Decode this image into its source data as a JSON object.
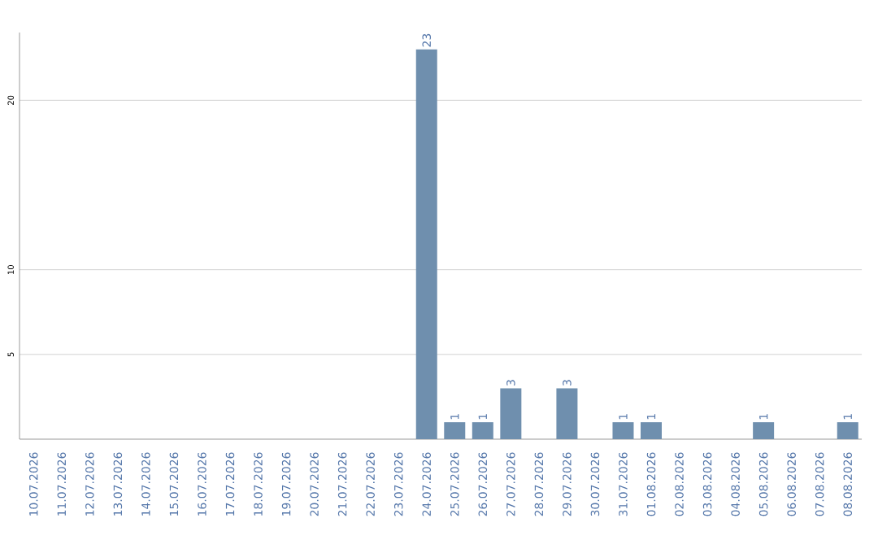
{
  "chart_data": {
    "type": "bar",
    "categories": [
      "10.07.2026",
      "11.07.2026",
      "12.07.2026",
      "13.07.2026",
      "14.07.2026",
      "15.07.2026",
      "16.07.2026",
      "17.07.2026",
      "18.07.2026",
      "19.07.2026",
      "20.07.2026",
      "21.07.2026",
      "22.07.2026",
      "23.07.2026",
      "24.07.2026",
      "25.07.2026",
      "26.07.2026",
      "27.07.2026",
      "28.07.2026",
      "29.07.2026",
      "30.07.2026",
      "31.07.2026",
      "01.08.2026",
      "02.08.2026",
      "03.08.2026",
      "04.08.2026",
      "05.08.2026",
      "06.08.2026",
      "07.08.2026",
      "08.08.2026"
    ],
    "values": [
      0,
      0,
      0,
      0,
      0,
      0,
      0,
      0,
      0,
      0,
      0,
      0,
      0,
      0,
      23,
      1,
      1,
      3,
      0,
      3,
      0,
      1,
      1,
      0,
      0,
      0,
      1,
      0,
      0,
      1
    ],
    "value_labels": [
      null,
      null,
      null,
      null,
      null,
      null,
      null,
      null,
      null,
      null,
      null,
      null,
      null,
      null,
      "23",
      "1",
      "1",
      "3",
      null,
      "3",
      null,
      "1",
      "1",
      null,
      null,
      null,
      "1",
      null,
      null,
      "1"
    ],
    "color": "#6f8fae",
    "ylim": [
      0,
      24
    ],
    "yticks": [
      5,
      10,
      20
    ],
    "grid": "y"
  }
}
